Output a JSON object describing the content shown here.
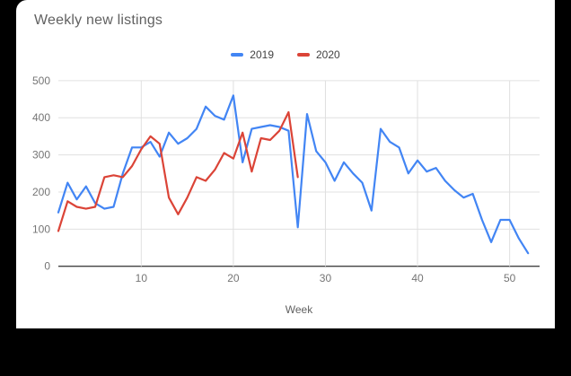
{
  "window": {
    "frame_color": "#000000",
    "card_color": "#FFFFFF"
  },
  "chart_data": {
    "type": "line",
    "title": "Weekly new listings",
    "xlabel": "Week",
    "ylabel": "",
    "xlim": [
      1,
      52
    ],
    "ylim": [
      0,
      500
    ],
    "x_ticks": [
      10,
      20,
      30,
      40,
      50
    ],
    "y_ticks": [
      0,
      100,
      200,
      300,
      400,
      500
    ],
    "grid": true,
    "legend_position": "top-center",
    "x_unit": "week_number",
    "series": [
      {
        "name": "2019",
        "color": "#4285F4",
        "start_week": 1,
        "values": [
          145,
          225,
          180,
          215,
          170,
          155,
          160,
          250,
          320,
          320,
          335,
          295,
          360,
          330,
          345,
          370,
          430,
          405,
          395,
          460,
          280,
          370,
          375,
          380,
          375,
          365,
          105,
          410,
          310,
          280,
          230,
          280,
          250,
          225,
          150,
          370,
          335,
          320,
          250,
          285,
          255,
          265,
          230,
          205,
          185,
          195,
          125,
          65,
          125,
          125,
          75,
          35
        ]
      },
      {
        "name": "2020",
        "color": "#DB4437",
        "start_week": 1,
        "values": [
          95,
          175,
          160,
          155,
          160,
          240,
          245,
          240,
          270,
          315,
          350,
          330,
          185,
          140,
          185,
          240,
          230,
          260,
          305,
          290,
          360,
          255,
          345,
          340,
          365,
          415,
          240
        ]
      }
    ],
    "style": {
      "grid_color": "#E0E0E0",
      "axis_line_color": "#424242",
      "tick_label_color": "#757575",
      "title_color": "#616161",
      "legend_text_color": "#424242",
      "line_width": 2.2
    }
  }
}
